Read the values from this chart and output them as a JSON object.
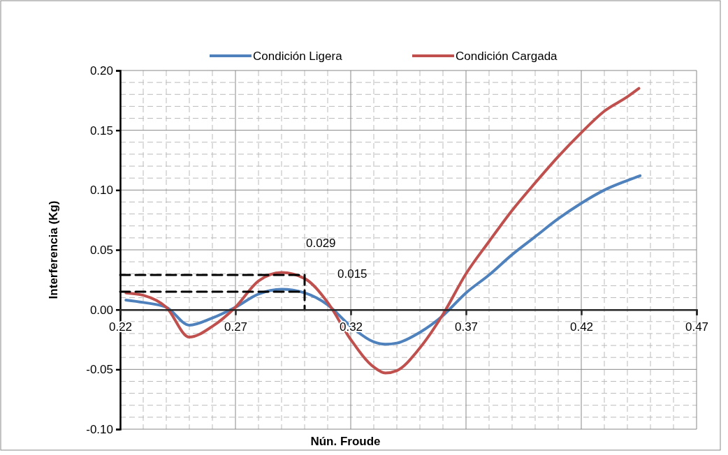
{
  "chart_data": {
    "type": "line",
    "xlabel": "Nún. Froude",
    "ylabel": "Interferencia (Kg)",
    "xlim": [
      0.22,
      0.47
    ],
    "xticks": [
      0.22,
      0.27,
      0.32,
      0.37,
      0.42,
      0.47
    ],
    "ylim": [
      -0.1,
      0.2
    ],
    "yticks": [
      {
        "value": -0.1,
        "label": "-0.10"
      },
      {
        "value": -0.05,
        "label": "-0.05"
      },
      {
        "value": 0,
        "label": "0.00"
      },
      {
        "value": 0.05,
        "label": "0.05"
      },
      {
        "value": 0.1,
        "label": "0.10"
      },
      {
        "value": 0.15,
        "label": "0.15"
      },
      {
        "value": 0.2,
        "label": "0.20"
      }
    ],
    "grid": true,
    "legend": "top",
    "series": [
      {
        "name": "Condición Ligera",
        "color": "#4f81bd",
        "x": [
          0.2225,
          0.23,
          0.24,
          0.25,
          0.26,
          0.27,
          0.28,
          0.29,
          0.3,
          0.31,
          0.32,
          0.33,
          0.335,
          0.34,
          0.35,
          0.36,
          0.37,
          0.38,
          0.39,
          0.4,
          0.41,
          0.42,
          0.43,
          0.44,
          0.4455
        ],
        "values": [
          0.008,
          0.006,
          0.002,
          -0.013,
          -0.007,
          0.002,
          0.013,
          0.017,
          0.014,
          0.004,
          -0.014,
          -0.027,
          -0.029,
          -0.028,
          -0.019,
          -0.005,
          0.014,
          0.029,
          0.046,
          0.061,
          0.076,
          0.089,
          0.1,
          0.108,
          0.112
        ]
      },
      {
        "name": "Condición Cargada",
        "color": "#c0504d",
        "x": [
          0.2225,
          0.23,
          0.24,
          0.25,
          0.26,
          0.27,
          0.28,
          0.29,
          0.3,
          0.31,
          0.32,
          0.33,
          0.335,
          0.34,
          0.35,
          0.36,
          0.37,
          0.38,
          0.39,
          0.4,
          0.41,
          0.42,
          0.43,
          0.44,
          0.445
        ],
        "values": [
          0.014,
          0.012,
          0.002,
          -0.023,
          -0.014,
          0.002,
          0.024,
          0.031,
          0.026,
          0.006,
          -0.025,
          -0.048,
          -0.053,
          -0.051,
          -0.032,
          -0.004,
          0.03,
          0.057,
          0.083,
          0.106,
          0.128,
          0.148,
          0.166,
          0.178,
          0.185
        ]
      },
      {
        "color": "#000000",
        "line_style": "dashed",
        "x": [
          0.22,
          0.3,
          0.3
        ],
        "values": [
          0.029,
          0.029,
          0
        ]
      },
      {
        "color": "#000000",
        "line_style": "dashed",
        "x": [
          0.22,
          0.3
        ],
        "values": [
          0.015,
          0.015
        ]
      }
    ],
    "annotations": [
      {
        "text": "0.029",
        "x": 0.3,
        "y": 0.029
      },
      {
        "text": "0.015",
        "x": 0.3,
        "y": 0.015
      }
    ]
  }
}
